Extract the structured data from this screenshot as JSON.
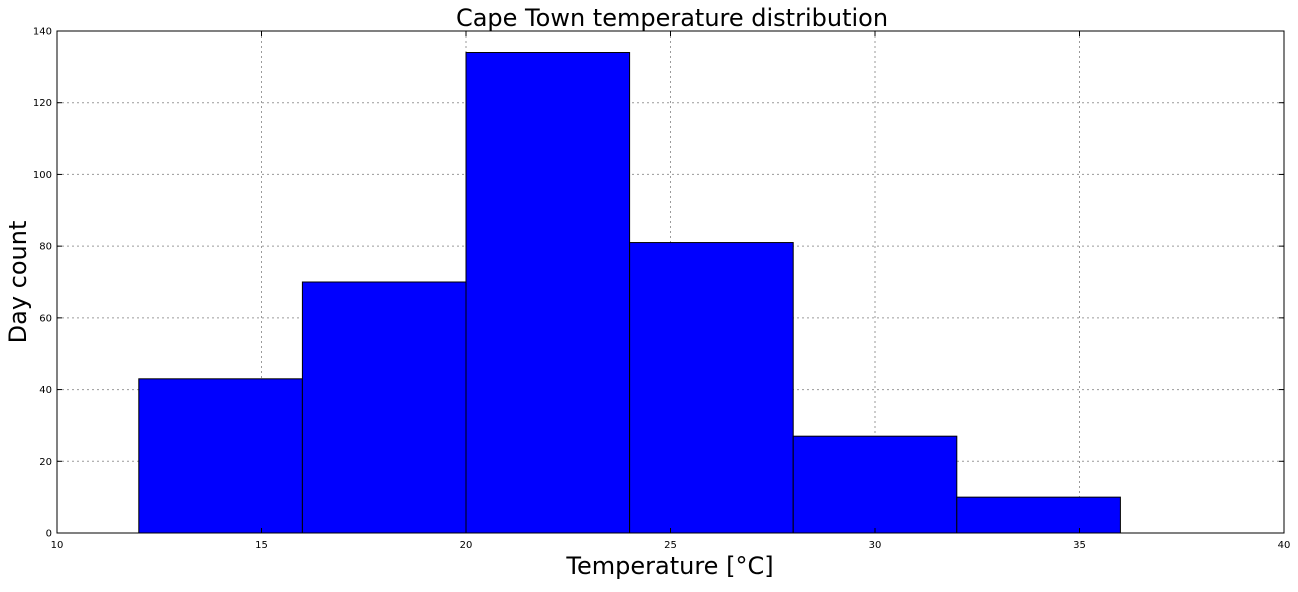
{
  "chart_data": {
    "type": "bar",
    "title": "Cape Town temperature distribution",
    "xlabel": "Temperature [°C]",
    "ylabel": "Day count",
    "xlim": [
      10,
      40
    ],
    "ylim": [
      0,
      140
    ],
    "xticks": [
      10,
      15,
      20,
      25,
      30,
      35,
      40
    ],
    "yticks": [
      0,
      20,
      40,
      60,
      80,
      100,
      120,
      140
    ],
    "grid": true,
    "bar_color": "#0000ff",
    "bins": [
      {
        "x0": 12,
        "x1": 16,
        "value": 43
      },
      {
        "x0": 16,
        "x1": 20,
        "value": 70
      },
      {
        "x0": 20,
        "x1": 24,
        "value": 134
      },
      {
        "x0": 24,
        "x1": 28,
        "value": 81
      },
      {
        "x0": 28,
        "x1": 32,
        "value": 27
      },
      {
        "x0": 32,
        "x1": 36,
        "value": 10
      }
    ]
  }
}
